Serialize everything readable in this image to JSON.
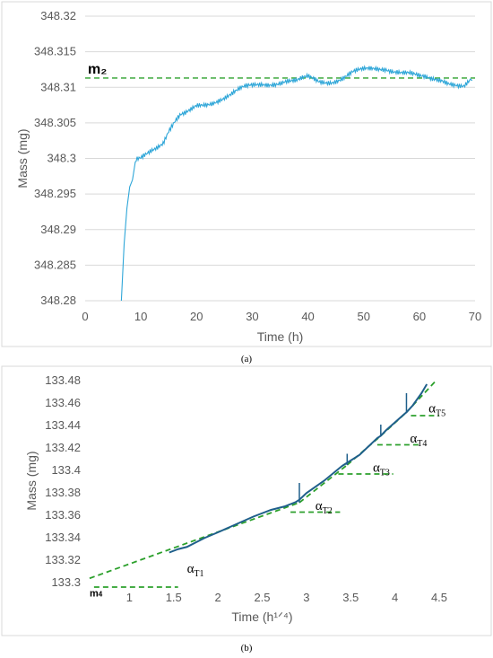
{
  "chart_data": [
    {
      "type": "line",
      "panel_label": "(a)",
      "xlabel": "Time (h)",
      "ylabel": "Mass (mg)",
      "xlim": [
        0,
        70
      ],
      "ylim": [
        348.28,
        348.32
      ],
      "x_ticks": [
        "0",
        "10",
        "20",
        "30",
        "40",
        "50",
        "60",
        "70"
      ],
      "y_ticks": [
        "348.28",
        "348.285",
        "348.29",
        "348.295",
        "348.3",
        "348.305",
        "348.31",
        "348.315",
        "348.32"
      ],
      "grid": "horizontal",
      "series": [
        {
          "color": "#2ea6d8",
          "x": [
            6.5,
            7.0,
            7.5,
            8.0,
            8.5,
            9.0,
            10,
            11,
            12,
            13,
            14,
            15,
            16,
            17,
            18,
            19,
            20,
            22,
            24,
            26,
            28,
            30,
            32,
            34,
            36,
            38,
            40,
            42,
            44,
            46,
            48,
            50,
            52,
            54,
            56,
            58,
            60,
            62,
            64,
            66,
            68,
            69.5
          ],
          "y": [
            348.28,
            348.288,
            348.293,
            348.296,
            348.297,
            348.2995,
            348.3,
            348.3008,
            348.3015,
            348.302,
            348.3025,
            348.304,
            348.305,
            348.3058,
            348.306,
            348.3065,
            348.3072,
            348.3078,
            348.3085,
            348.309,
            348.3096,
            348.31,
            348.3105,
            348.3108,
            348.311,
            348.3107,
            348.3112,
            348.3108,
            348.311,
            348.3114,
            348.312,
            348.3122,
            348.3125,
            348.3128,
            348.3125,
            348.312,
            348.3112,
            348.311,
            348.3112,
            348.3108,
            348.3102,
            348.311
          ]
        }
      ],
      "reference_lines": [
        {
          "label": "m₂",
          "y": 348.3113,
          "x_range": [
            0,
            70
          ],
          "color": "#2ca02c",
          "style": "dashed"
        }
      ]
    },
    {
      "type": "line",
      "panel_label": "(b)",
      "xlabel": "Time (h¹ᐟ⁴)",
      "ylabel": "Mass (mg)",
      "xlim": [
        0.5,
        4.5
      ],
      "ylim": [
        133.3,
        133.48
      ],
      "x_ticks": [
        "1",
        "1.5",
        "2",
        "2.5",
        "3",
        "3.5",
        "4",
        "4.5"
      ],
      "y_ticks": [
        "133.3",
        "133.32",
        "133.34",
        "133.36",
        "133.38",
        "133.4",
        "133.42",
        "133.44",
        "133.46",
        "133.48"
      ],
      "grid": "none",
      "series": [
        {
          "color": "#1f5f8b",
          "x": [
            1.45,
            1.55,
            1.65,
            1.75,
            1.85,
            2.0,
            2.2,
            2.4,
            2.6,
            2.75,
            2.88,
            2.92,
            3.0,
            3.2,
            3.4,
            3.46,
            3.6,
            3.8,
            3.84,
            3.9,
            4.0,
            4.1,
            4.13,
            4.2,
            4.3,
            4.36
          ],
          "y": [
            133.326,
            133.329,
            133.331,
            133.335,
            133.339,
            133.344,
            133.351,
            133.358,
            133.364,
            133.367,
            133.371,
            133.373,
            133.379,
            133.39,
            133.403,
            133.406,
            133.413,
            133.428,
            133.43,
            133.435,
            133.442,
            133.449,
            133.451,
            133.457,
            133.468,
            133.476
          ]
        }
      ],
      "tangent_lines": [
        {
          "label": "T1",
          "x": [
            0.55,
            2.92
          ],
          "y": [
            133.303,
            133.3705
          ]
        },
        {
          "label": "T2",
          "x": [
            2.92,
            3.46
          ],
          "y": [
            133.3705,
            133.404
          ]
        },
        {
          "label": "T3",
          "x": [
            3.46,
            3.84
          ],
          "y": [
            133.404,
            133.43
          ]
        },
        {
          "label": "T4",
          "x": [
            3.84,
            4.13
          ],
          "y": [
            133.43,
            133.451
          ]
        },
        {
          "label": "T5",
          "x": [
            4.13,
            4.45
          ],
          "y": [
            133.451,
            133.478
          ]
        }
      ],
      "horizontal_refs": [
        {
          "x": [
            0.6,
            1.55
          ],
          "y": 133.295
        },
        {
          "x": [
            2.82,
            3.38
          ],
          "y": 133.362
        },
        {
          "x": [
            3.36,
            3.98
          ],
          "y": 133.396
        },
        {
          "x": [
            3.8,
            4.28
          ],
          "y": 133.422
        },
        {
          "x": [
            4.18,
            4.5
          ],
          "y": 133.448
        }
      ],
      "annotations": [
        {
          "sym": "α",
          "sub": "T1"
        },
        {
          "sym": "α",
          "sub": "T2"
        },
        {
          "sym": "α",
          "sub": "T3"
        },
        {
          "sym": "α",
          "sub": "T4"
        },
        {
          "sym": "α",
          "sub": "T5"
        },
        {
          "sym": "m",
          "sub": "4"
        }
      ],
      "colors": {
        "tangent": "#2ca02c"
      }
    }
  ]
}
